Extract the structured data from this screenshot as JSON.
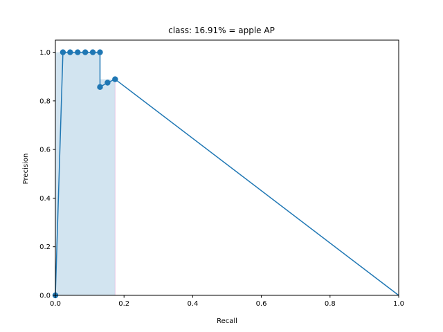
{
  "chart_data": {
    "type": "line",
    "title": "class: 16.91% = apple AP",
    "xlabel": "Recall",
    "ylabel": "Precision",
    "xlim": [
      0.0,
      1.0
    ],
    "ylim": [
      0.0,
      1.05
    ],
    "xticks": [
      "0.0",
      "0.2",
      "0.4",
      "0.6",
      "0.8",
      "1.0"
    ],
    "yticks": [
      "0.0",
      "0.2",
      "0.4",
      "0.6",
      "0.8",
      "1.0"
    ],
    "grid": false,
    "colors": {
      "line": "#1f77b4",
      "fill": "#1f77b4",
      "fill_edge": "#e377c2"
    },
    "series": [
      {
        "x": [
          0.0,
          0.022,
          0.043,
          0.065,
          0.087,
          0.109,
          0.13,
          0.13,
          0.152,
          0.174,
          1.0
        ],
        "y": [
          0.0,
          1.0,
          1.0,
          1.0,
          1.0,
          1.0,
          1.0,
          0.857,
          0.875,
          0.889,
          0.0
        ],
        "markers": [
          true,
          true,
          true,
          true,
          true,
          true,
          true,
          true,
          true,
          true,
          false
        ]
      }
    ],
    "ap_area": {
      "x": [
        0.0,
        0.0,
        0.13,
        0.13,
        0.174,
        0.174
      ],
      "y": [
        0.0,
        1.0,
        1.0,
        0.889,
        0.889,
        0.0
      ]
    }
  }
}
